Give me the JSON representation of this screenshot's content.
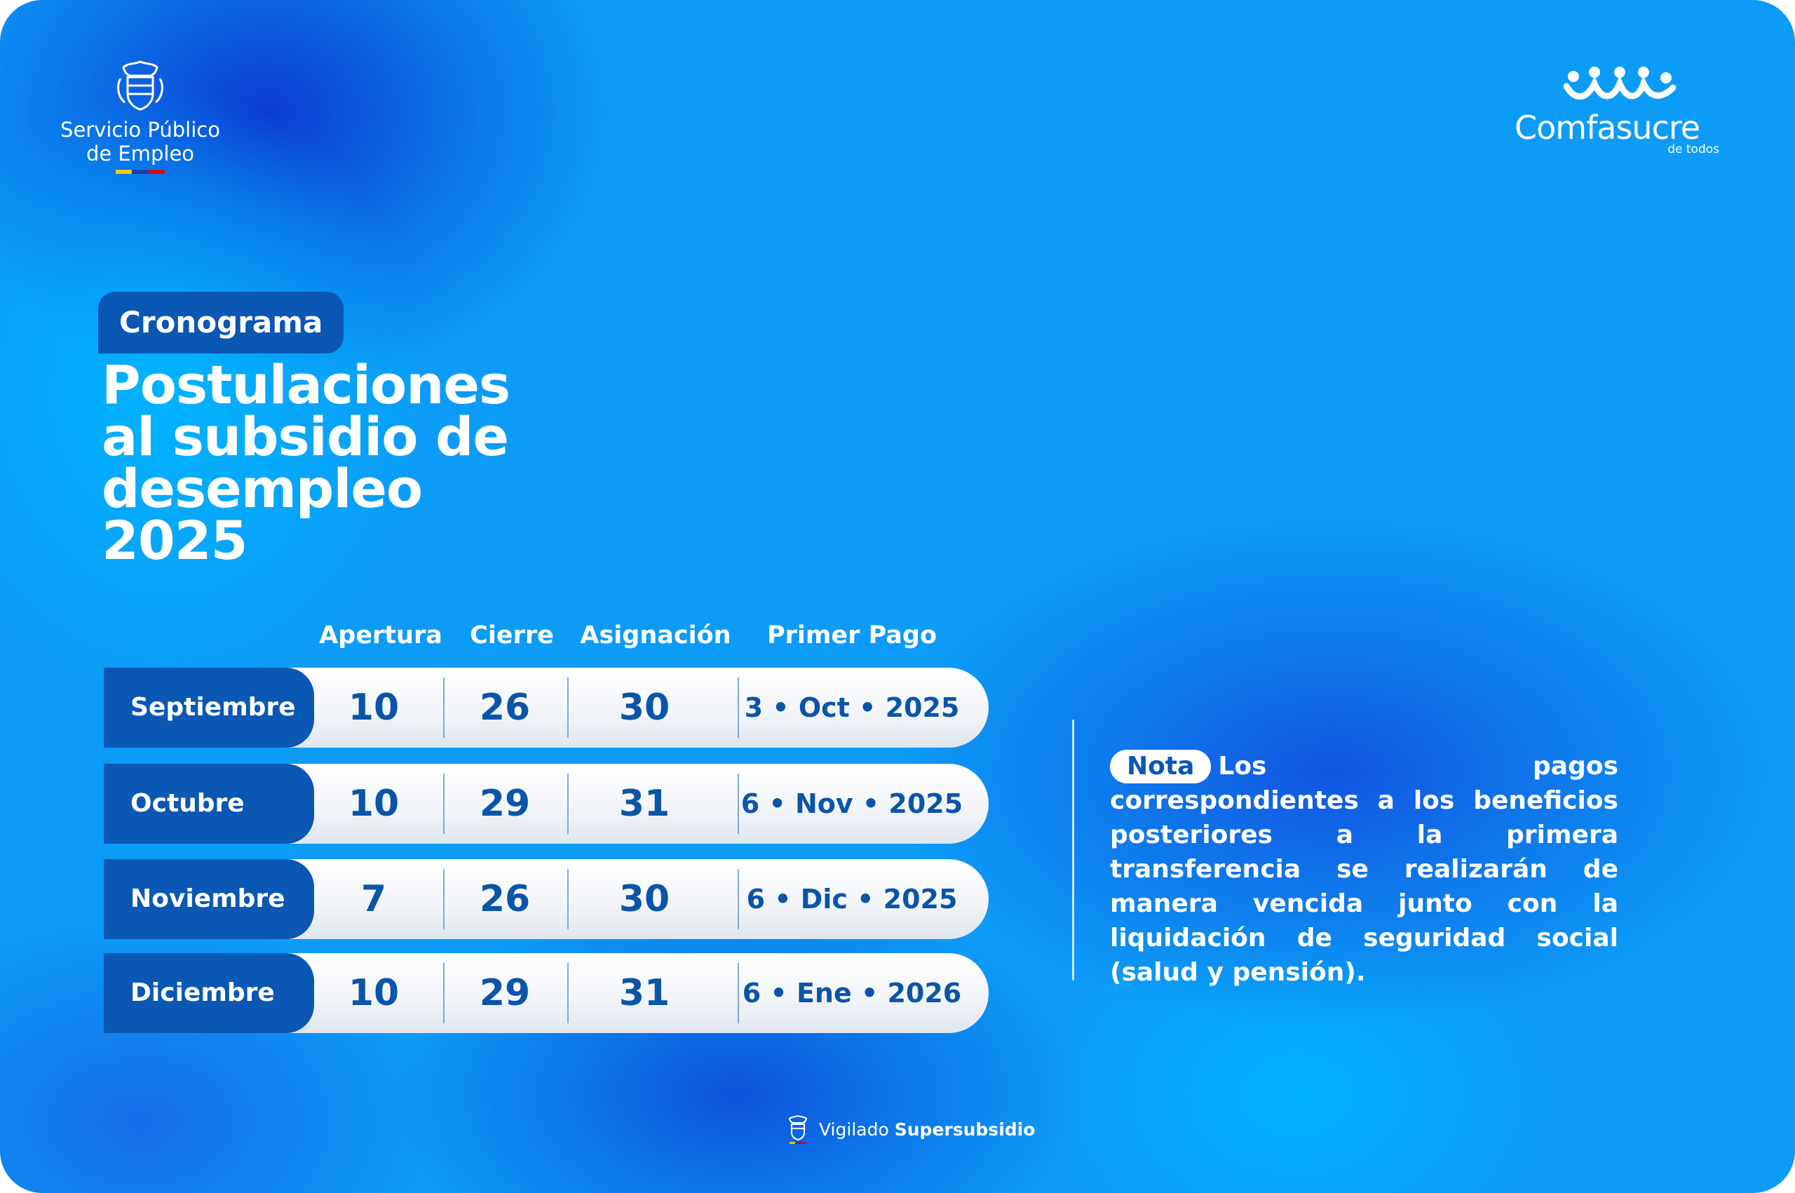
{
  "logos": {
    "left": {
      "name_line1": "Servicio Público",
      "name_line2": "de Empleo",
      "icon": "colombia-crest-icon",
      "flag_colors": [
        "#f7c600",
        "#1b3fa8",
        "#e1001a"
      ]
    },
    "right": {
      "brand": "Comfasucre",
      "tagline": "de todos",
      "icon": "comfasucre-people-icon"
    }
  },
  "header": {
    "pill": "Cronograma",
    "title_lines": [
      "Postulaciones",
      "al subsidio de",
      "desempleo",
      "2025"
    ]
  },
  "table": {
    "columns": [
      "Apertura",
      "Cierre",
      "Asignación",
      "Primer Pago"
    ],
    "rows": [
      {
        "month": "Septiembre",
        "apertura": "10",
        "cierre": "26",
        "asignacion": "30",
        "primer_pago": "3 • Oct • 2025"
      },
      {
        "month": "Octubre",
        "apertura": "10",
        "cierre": "29",
        "asignacion": "31",
        "primer_pago": "6 • Nov • 2025"
      },
      {
        "month": "Noviembre",
        "apertura": "7",
        "cierre": "26",
        "asignacion": "30",
        "primer_pago": "6 • Dic • 2025"
      },
      {
        "month": "Diciembre",
        "apertura": "10",
        "cierre": "29",
        "asignacion": "31",
        "primer_pago": "6 • Ene • 2026"
      }
    ]
  },
  "note": {
    "label": "Nota",
    "text": "Los pagos correspondientes a los beneficios posteriores a la primera transferencia se realizarán de manera vencida junto con la liquidación de seguridad social (salud y pensión)."
  },
  "footer": {
    "prefix": "Vigilado",
    "brand": "Supersubsidio",
    "icon": "supersubsidio-crest-icon"
  },
  "colors": {
    "primary_dark": "#0a57b4",
    "text_blue": "#0a55a8",
    "background": "#0c9cf7"
  }
}
